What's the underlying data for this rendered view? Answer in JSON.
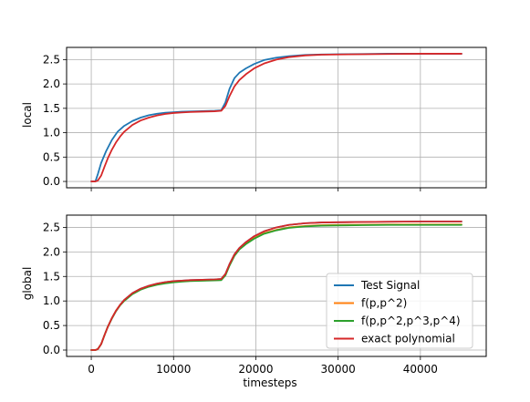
{
  "chart_data": [
    {
      "id": "local",
      "type": "line",
      "title": "",
      "xlabel": "",
      "ylabel": "local",
      "xlim": [
        -3000,
        48000
      ],
      "ylim": [
        -0.13,
        2.75
      ],
      "xticks": [
        0,
        10000,
        20000,
        30000,
        40000
      ],
      "xtick_labels": [
        "",
        "",
        "",
        "",
        ""
      ],
      "yticks": [
        0.0,
        0.5,
        1.0,
        1.5,
        2.0,
        2.5
      ],
      "ytick_labels": [
        "0.0",
        "0.5",
        "1.0",
        "1.5",
        "2.0",
        "2.5"
      ],
      "grid": true,
      "series": [
        {
          "name": "Test Signal",
          "color": "#1f77b4",
          "x": [
            0,
            500,
            800,
            1200,
            1800,
            2500,
            3200,
            4000,
            5000,
            6000,
            7000,
            8000,
            9000,
            10000,
            11000,
            12000,
            13000,
            14000,
            15000,
            15800,
            16300,
            16800,
            17400,
            18000,
            18800,
            19800,
            21000,
            22500,
            24000,
            26000,
            28000,
            30000,
            33000,
            36000,
            40000,
            45000
          ],
          "y": [
            0.0,
            0.0,
            0.15,
            0.38,
            0.62,
            0.85,
            1.02,
            1.14,
            1.24,
            1.31,
            1.36,
            1.39,
            1.41,
            1.42,
            1.43,
            1.435,
            1.44,
            1.445,
            1.45,
            1.46,
            1.62,
            1.9,
            2.12,
            2.23,
            2.32,
            2.41,
            2.49,
            2.54,
            2.57,
            2.595,
            2.605,
            2.61,
            2.615,
            2.62,
            2.62,
            2.62
          ]
        },
        {
          "name": "exact polynomial",
          "color": "#d62728",
          "x": [
            0,
            500,
            800,
            1200,
            1600,
            2000,
            2500,
            3000,
            3500,
            4000,
            5000,
            6000,
            7000,
            8000,
            9000,
            10000,
            11000,
            12000,
            13000,
            14000,
            15000,
            15800,
            16300,
            16800,
            17400,
            18000,
            18800,
            19800,
            21000,
            22500,
            24000,
            26000,
            28000,
            30000,
            33000,
            36000,
            40000,
            45000
          ],
          "y": [
            0.0,
            0.0,
            0.02,
            0.12,
            0.3,
            0.47,
            0.65,
            0.8,
            0.92,
            1.02,
            1.16,
            1.25,
            1.31,
            1.355,
            1.385,
            1.405,
            1.415,
            1.425,
            1.43,
            1.435,
            1.44,
            1.45,
            1.55,
            1.75,
            1.95,
            2.08,
            2.2,
            2.32,
            2.42,
            2.5,
            2.55,
            2.585,
            2.6,
            2.605,
            2.61,
            2.615,
            2.62,
            2.62
          ]
        }
      ]
    },
    {
      "id": "global",
      "type": "line",
      "title": "",
      "xlabel": "timesteps",
      "ylabel": "global",
      "xlim": [
        -3000,
        48000
      ],
      "ylim": [
        -0.13,
        2.75
      ],
      "xticks": [
        0,
        10000,
        20000,
        30000,
        40000
      ],
      "xtick_labels": [
        "0",
        "10000",
        "20000",
        "30000",
        "40000"
      ],
      "yticks": [
        0.0,
        0.5,
        1.0,
        1.5,
        2.0,
        2.5
      ],
      "ytick_labels": [
        "0.0",
        "0.5",
        "1.0",
        "1.5",
        "2.0",
        "2.5"
      ],
      "grid": true,
      "legend": {
        "position": "lower right",
        "entries": [
          {
            "name": "Test Signal",
            "color": "#1f77b4"
          },
          {
            "name": "f(p,p^2)",
            "color": "#ff7f0e"
          },
          {
            "name": "f(p,p^2,p^3,p^4)",
            "color": "#2ca02c"
          },
          {
            "name": "exact polynomial",
            "color": "#d62728"
          }
        ]
      },
      "series": [
        {
          "name": "Test Signal",
          "color": "#1f77b4",
          "x": [
            0,
            500,
            800,
            1200,
            1600,
            2000,
            2500,
            3000,
            3500,
            4000,
            5000,
            6000,
            7000,
            8000,
            9000,
            10000,
            11000,
            12000,
            13000,
            14000,
            15000,
            15800,
            16300,
            16800,
            17400,
            18000,
            18800,
            19800,
            21000,
            22500,
            24000,
            26000,
            28000,
            30000,
            33000,
            36000,
            40000,
            45000
          ],
          "y": [
            0.0,
            0.0,
            0.02,
            0.12,
            0.3,
            0.47,
            0.65,
            0.8,
            0.92,
            1.02,
            1.16,
            1.25,
            1.31,
            1.355,
            1.385,
            1.405,
            1.415,
            1.425,
            1.43,
            1.435,
            1.44,
            1.45,
            1.55,
            1.75,
            1.95,
            2.08,
            2.2,
            2.32,
            2.42,
            2.5,
            2.55,
            2.585,
            2.6,
            2.605,
            2.61,
            2.615,
            2.62,
            2.62
          ]
        },
        {
          "name": "f(p,p^2)",
          "color": "#ff7f0e",
          "x": [
            0,
            500,
            800,
            1200,
            1600,
            2000,
            2500,
            3000,
            3500,
            4000,
            5000,
            6000,
            7000,
            8000,
            9000,
            10000,
            11000,
            12000,
            13000,
            14000,
            15000,
            15800,
            16300,
            16800,
            17400,
            18000,
            18800,
            19800,
            21000,
            22500,
            24000,
            26000,
            28000,
            30000,
            33000,
            36000,
            40000,
            45000
          ],
          "y": [
            0.0,
            0.0,
            0.02,
            0.12,
            0.3,
            0.47,
            0.65,
            0.8,
            0.92,
            1.01,
            1.15,
            1.24,
            1.3,
            1.34,
            1.37,
            1.39,
            1.4,
            1.41,
            1.415,
            1.42,
            1.425,
            1.43,
            1.53,
            1.73,
            1.93,
            2.06,
            2.17,
            2.28,
            2.38,
            2.45,
            2.5,
            2.53,
            2.545,
            2.55,
            2.555,
            2.56,
            2.56,
            2.56
          ]
        },
        {
          "name": "f(p,p^2,p^3,p^4)",
          "color": "#2ca02c",
          "x": [
            0,
            500,
            800,
            1200,
            1600,
            2000,
            2500,
            3000,
            3500,
            4000,
            5000,
            6000,
            7000,
            8000,
            9000,
            10000,
            11000,
            12000,
            13000,
            14000,
            15000,
            15800,
            16300,
            16800,
            17400,
            18000,
            18800,
            19800,
            21000,
            22500,
            24000,
            26000,
            28000,
            30000,
            33000,
            36000,
            40000,
            45000
          ],
          "y": [
            0.0,
            0.0,
            0.02,
            0.12,
            0.3,
            0.47,
            0.64,
            0.79,
            0.91,
            1.0,
            1.14,
            1.23,
            1.29,
            1.33,
            1.36,
            1.38,
            1.395,
            1.405,
            1.41,
            1.415,
            1.42,
            1.425,
            1.52,
            1.72,
            1.92,
            2.05,
            2.16,
            2.27,
            2.37,
            2.44,
            2.49,
            2.52,
            2.535,
            2.54,
            2.545,
            2.55,
            2.55,
            2.55
          ]
        },
        {
          "name": "exact polynomial",
          "color": "#d62728",
          "x": [
            0,
            500,
            800,
            1200,
            1600,
            2000,
            2500,
            3000,
            3500,
            4000,
            5000,
            6000,
            7000,
            8000,
            9000,
            10000,
            11000,
            12000,
            13000,
            14000,
            15000,
            15800,
            16300,
            16800,
            17400,
            18000,
            18800,
            19800,
            21000,
            22500,
            24000,
            26000,
            28000,
            30000,
            33000,
            36000,
            40000,
            45000
          ],
          "y": [
            0.0,
            0.0,
            0.02,
            0.12,
            0.3,
            0.47,
            0.65,
            0.8,
            0.92,
            1.02,
            1.16,
            1.25,
            1.31,
            1.355,
            1.385,
            1.405,
            1.415,
            1.425,
            1.43,
            1.435,
            1.44,
            1.45,
            1.55,
            1.75,
            1.95,
            2.08,
            2.2,
            2.32,
            2.42,
            2.5,
            2.55,
            2.585,
            2.6,
            2.605,
            2.61,
            2.615,
            2.62,
            2.62
          ]
        }
      ]
    }
  ]
}
